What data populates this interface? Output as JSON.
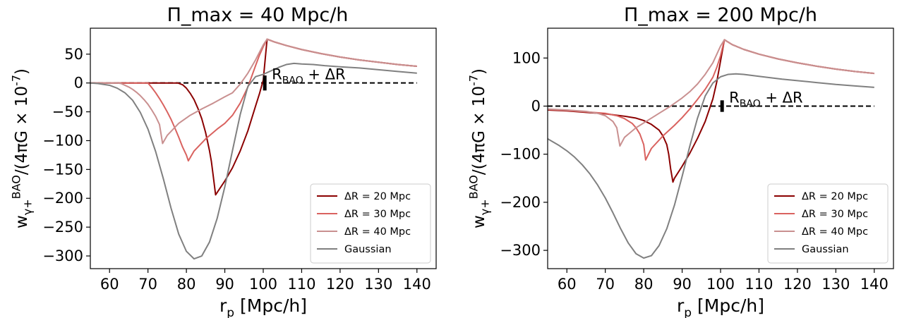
{
  "chart_data": [
    {
      "type": "line",
      "title": "Π_max = 40 Mpc/h",
      "xlabel": "r_p [Mpc/h]",
      "ylabel": "w_{γ+}^{BAO}/(4πG × 10^{-7})",
      "xlim": [
        55,
        145
      ],
      "ylim": [
        -322,
        95
      ],
      "xticks": [
        60,
        70,
        80,
        90,
        100,
        110,
        120,
        130,
        140
      ],
      "yticks": [
        50,
        0,
        -50,
        -100,
        -150,
        -200,
        -250,
        -300
      ],
      "grid": false,
      "legend_position": "lower-right",
      "reference_line": {
        "y": 0,
        "x_range": [
          55,
          140
        ],
        "style": "dashed",
        "color": "#000000"
      },
      "marker": {
        "x": 100.4,
        "y_range": [
          -13,
          13
        ],
        "label": "R_BAO + ΔR"
      },
      "series": [
        {
          "name": "ΔR = 20 Mpc",
          "color": "#8b0000",
          "x": [
            55,
            60,
            65,
            70,
            75,
            77.8,
            79,
            80,
            81,
            82,
            83,
            84,
            85,
            86,
            86.5,
            87,
            87.6,
            90,
            92,
            94,
            96,
            98,
            99,
            100,
            101,
            103,
            106,
            110,
            115,
            120,
            125,
            130,
            135,
            140
          ],
          "y": [
            0,
            0,
            0,
            0,
            0,
            0,
            -3,
            -9,
            -18,
            -29,
            -44,
            -62,
            -86,
            -117,
            -136,
            -162,
            -194,
            -170,
            -147,
            -118,
            -83,
            -40,
            -19,
            5,
            76,
            71,
            65,
            58,
            51,
            45,
            40,
            36,
            32,
            29
          ]
        },
        {
          "name": "ΔR = 30 Mpc",
          "color": "#d9625f",
          "x": [
            55,
            60,
            65,
            68,
            70,
            71,
            72,
            73,
            74,
            75,
            76,
            77,
            78,
            79,
            80,
            80.5,
            82,
            85,
            88,
            90,
            92,
            94,
            96,
            98,
            99,
            100,
            101,
            103,
            106,
            110,
            115,
            120,
            125,
            130,
            135,
            140
          ],
          "y": [
            0,
            0,
            0,
            0,
            0,
            -8,
            -17,
            -27,
            -38,
            -50,
            -63,
            -78,
            -94,
            -111,
            -125,
            -135,
            -118,
            -97,
            -80,
            -70,
            -56,
            -35,
            -7,
            30,
            48,
            63,
            76,
            71,
            65,
            58,
            51,
            45,
            40,
            36,
            32,
            29
          ]
        },
        {
          "name": "ΔR = 40 Mpc",
          "color": "#c99090",
          "x": [
            55,
            58,
            60,
            62,
            63,
            64,
            65,
            66,
            67,
            68,
            69,
            70,
            71,
            72,
            73,
            73.8,
            75,
            78,
            81,
            84,
            87,
            90,
            92,
            94,
            96,
            98,
            100,
            101,
            103,
            106,
            110,
            115,
            120,
            125,
            130,
            135,
            140
          ],
          "y": [
            0,
            0,
            0,
            0,
            -1,
            -4,
            -7,
            -11,
            -16,
            -22,
            -29,
            -37,
            -47,
            -58,
            -72,
            -105,
            -91,
            -70,
            -56,
            -45,
            -35,
            -24,
            -17,
            -2,
            17,
            40,
            66,
            76,
            71,
            65,
            58,
            51,
            45,
            40,
            36,
            32,
            29
          ]
        },
        {
          "name": "Gaussian",
          "color": "#808080",
          "x": [
            55,
            57,
            60,
            62,
            64,
            66,
            68,
            70,
            72,
            74,
            76,
            78,
            80,
            82,
            84,
            86,
            88,
            90,
            92,
            94,
            96,
            98,
            100,
            102,
            104,
            106,
            108,
            110,
            113,
            116,
            120,
            125,
            130,
            135,
            140
          ],
          "y": [
            0,
            -1,
            -4,
            -9,
            -17,
            -30,
            -51,
            -80,
            -119,
            -166,
            -217,
            -262,
            -292,
            -305,
            -300,
            -276,
            -235,
            -180,
            -117,
            -55,
            -6,
            11,
            15,
            21,
            27,
            32,
            34,
            33,
            32,
            30,
            28,
            26,
            23,
            20,
            17
          ]
        }
      ]
    },
    {
      "type": "line",
      "title": "Π_max = 200 Mpc/h",
      "xlabel": "r_p [Mpc/h]",
      "ylabel": "w_{γ+}^{BAO}/(4πG × 10^{-7})",
      "xlim": [
        55,
        145
      ],
      "ylim": [
        -338,
        162
      ],
      "xticks": [
        60,
        70,
        80,
        90,
        100,
        110,
        120,
        130,
        140
      ],
      "yticks": [
        100,
        0,
        -100,
        -200,
        -300
      ],
      "grid": false,
      "legend_position": "lower-right",
      "reference_line": {
        "y": 0,
        "x_range": [
          55,
          140
        ],
        "style": "dashed",
        "color": "#000000"
      },
      "marker": {
        "x": 100.4,
        "y_range": [
          -12,
          12
        ],
        "label": "R_BAO + ΔR"
      },
      "series": [
        {
          "name": "ΔR = 20 Mpc",
          "color": "#8b0000",
          "x": [
            55,
            60,
            65,
            70,
            75,
            78,
            80,
            82,
            84,
            85,
            86,
            86.5,
            87,
            87.6,
            88,
            90,
            92,
            94,
            96,
            98,
            99,
            100,
            101,
            103,
            106,
            110,
            115,
            120,
            125,
            130,
            135,
            140
          ],
          "y": [
            -8,
            -10,
            -13,
            -16,
            -21,
            -25,
            -30,
            -38,
            -50,
            -62,
            -80,
            -100,
            -130,
            -158,
            -150,
            -125,
            -98,
            -67,
            -32,
            15,
            50,
            94,
            138,
            128,
            118,
            108,
            98,
            90,
            83,
            77,
            72,
            68
          ]
        },
        {
          "name": "ΔR = 30 Mpc",
          "color": "#d9625f",
          "x": [
            55,
            60,
            65,
            70,
            73,
            75,
            77,
            78,
            79,
            80,
            80.5,
            82,
            85,
            88,
            90,
            92,
            94,
            96,
            98,
            99,
            100,
            101,
            103,
            106,
            110,
            115,
            120,
            125,
            130,
            135,
            140
          ],
          "y": [
            -7,
            -9,
            -12,
            -15,
            -20,
            -26,
            -36,
            -45,
            -58,
            -80,
            -112,
            -88,
            -62,
            -40,
            -24,
            -6,
            14,
            35,
            60,
            80,
            105,
            138,
            128,
            118,
            108,
            98,
            90,
            83,
            77,
            72,
            68
          ]
        },
        {
          "name": "ΔR = 40 Mpc",
          "color": "#c99090",
          "x": [
            55,
            60,
            65,
            68,
            70,
            72,
            73,
            73.8,
            75,
            78,
            81,
            84,
            87,
            90,
            92,
            94,
            96,
            98,
            100,
            101,
            103,
            106,
            110,
            115,
            120,
            125,
            130,
            135,
            140
          ],
          "y": [
            -6,
            -8,
            -11,
            -15,
            -20,
            -32,
            -45,
            -83,
            -65,
            -45,
            -30,
            -15,
            0,
            17,
            30,
            46,
            66,
            90,
            125,
            138,
            128,
            118,
            108,
            98,
            90,
            83,
            77,
            72,
            68
          ]
        },
        {
          "name": "Gaussian",
          "color": "#808080",
          "x": [
            55,
            58,
            60,
            62,
            64,
            66,
            68,
            70,
            72,
            74,
            76,
            78,
            80,
            82,
            84,
            86,
            88,
            90,
            92,
            94,
            96,
            98,
            100,
            102,
            104,
            106,
            108,
            110,
            113,
            116,
            120,
            125,
            130,
            135,
            140
          ],
          "y": [
            -68,
            -82,
            -93,
            -106,
            -122,
            -141,
            -164,
            -191,
            -222,
            -255,
            -285,
            -307,
            -316,
            -311,
            -290,
            -255,
            -206,
            -146,
            -83,
            -25,
            21,
            48,
            61,
            66,
            67,
            66,
            64,
            62,
            59,
            56,
            53,
            49,
            45,
            42,
            39
          ]
        }
      ]
    }
  ]
}
